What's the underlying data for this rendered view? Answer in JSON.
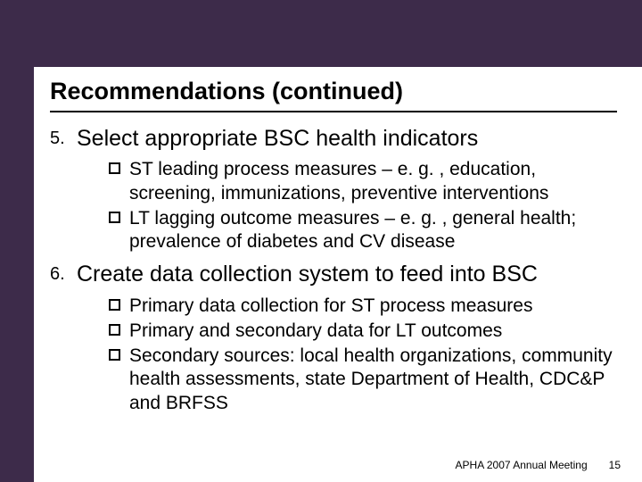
{
  "colors": {
    "background": "#3d2b4a",
    "content_bg": "#ffffff",
    "text": "#000000",
    "rule": "#000000"
  },
  "title": "Recommendations (continued)",
  "items": [
    {
      "number": "5.",
      "text": "Select appropriate BSC health indicators",
      "subs": [
        "ST leading process measures – e. g. , education, screening, immunizations, preventive interventions",
        "LT lagging outcome measures – e. g. , general health; prevalence of diabetes and CV disease"
      ]
    },
    {
      "number": "6.",
      "text": "Create data collection system to feed into BSC",
      "subs": [
        "Primary data collection for ST process measures",
        "Primary and secondary data for LT outcomes",
        "Secondary sources: local health organizations, community health assessments, state Department of Health, CDC&P and BRFSS"
      ]
    }
  ],
  "footer": "APHA 2007 Annual Meeting",
  "page": "15"
}
